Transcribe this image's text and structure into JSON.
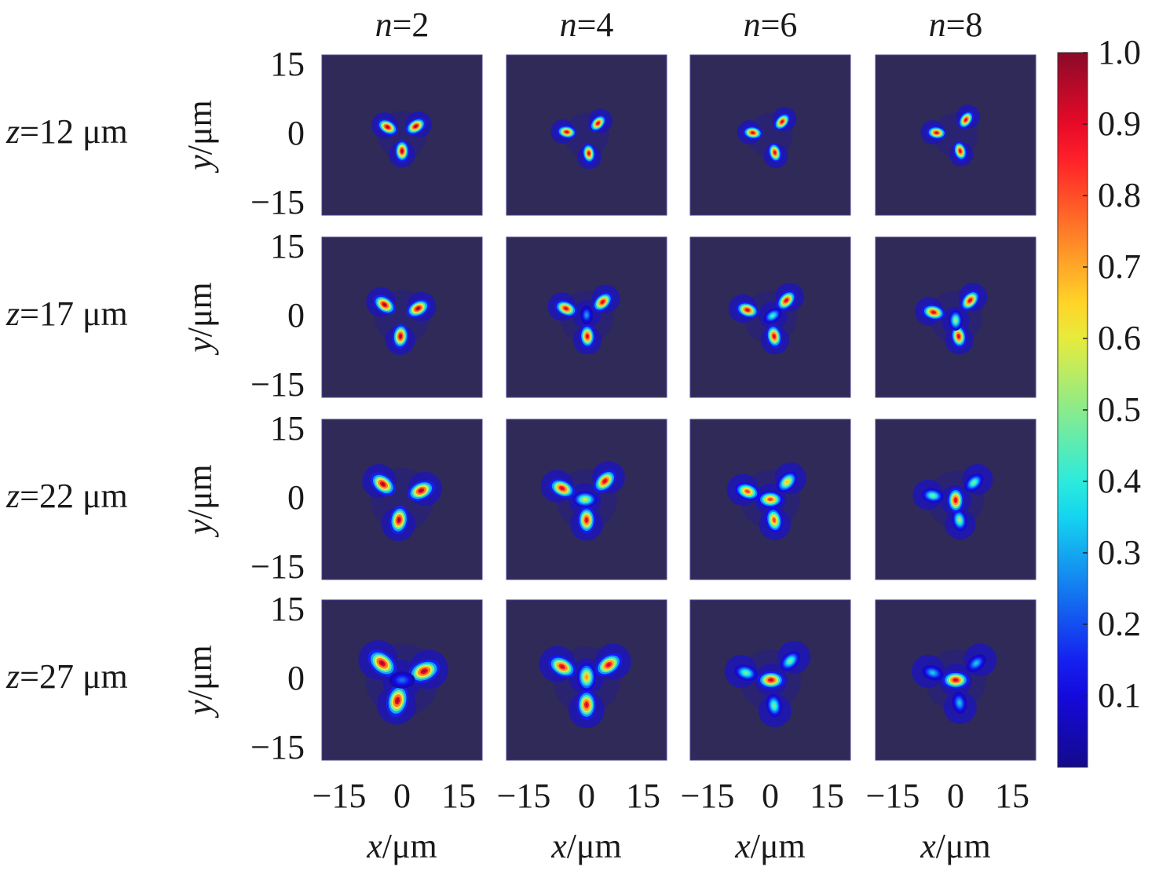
{
  "chart_data": {
    "type": "heatmap",
    "layout": "grid of intensity maps, 4 rows x 4 columns",
    "column_labels": [
      {
        "var": "n",
        "text": "=2"
      },
      {
        "var": "n",
        "text": "=4"
      },
      {
        "var": "n",
        "text": "=6"
      },
      {
        "var": "n",
        "text": "=8"
      }
    ],
    "row_labels": [
      {
        "var": "z",
        "text": "=12 μm"
      },
      {
        "var": "z",
        "text": "=17 μm"
      },
      {
        "var": "z",
        "text": "=22 μm"
      },
      {
        "var": "z",
        "text": "=27 μm"
      }
    ],
    "xlabel": {
      "var": "x",
      "text": "/μm"
    },
    "ylabel": {
      "var": "y",
      "text": "/μm"
    },
    "x_tick_labels": [
      "−15",
      "0",
      "15"
    ],
    "y_tick_labels": [
      "15",
      "0",
      "−15"
    ],
    "xlim": [
      -21,
      21
    ],
    "ylim": [
      -21,
      21
    ],
    "colorbar": {
      "colormap": "jet",
      "range": [
        0,
        1
      ],
      "tick_labels": [
        "1.0",
        "0.9",
        "0.8",
        "0.7",
        "0.6",
        "0.5",
        "0.4",
        "0.3",
        "0.2",
        "0.1"
      ],
      "tick_values": [
        1.0,
        0.9,
        0.8,
        0.7,
        0.6,
        0.5,
        0.4,
        0.3,
        0.2,
        0.1
      ]
    },
    "background_color": "#302a58",
    "panels": [
      [
        {
          "lobes": [
            [
              -3.8,
              2.1,
              1.0
            ],
            [
              3.6,
              2.3,
              1.0
            ],
            [
              0,
              -4.2,
              1.0
            ]
          ],
          "spread": 1.2
        },
        {
          "lobes": [
            [
              -5.2,
              0.8,
              0.95
            ],
            [
              3.0,
              3.1,
              0.95
            ],
            [
              0.6,
              -4.8,
              0.95
            ]
          ],
          "spread": 1.1
        },
        {
          "lobes": [
            [
              -4.6,
              0.6,
              0.95
            ],
            [
              3.1,
              3.5,
              0.95
            ],
            [
              1.2,
              -4.6,
              0.95
            ]
          ],
          "spread": 1.1
        },
        {
          "lobes": [
            [
              -5.0,
              0.6,
              0.95
            ],
            [
              2.7,
              4.0,
              0.95
            ],
            [
              1.2,
              -4.2,
              0.95
            ]
          ],
          "spread": 1.1
        }
      ],
      [
        {
          "lobes": [
            [
              -4.6,
              3.3,
              1.0
            ],
            [
              4.2,
              2.3,
              1.0
            ],
            [
              -0.4,
              -5.0,
              1.0
            ]
          ],
          "spread": 1.35
        },
        {
          "lobes": [
            [
              -5.4,
              2.3,
              0.95
            ],
            [
              4.2,
              4.0,
              0.95
            ],
            [
              0.2,
              -5.0,
              0.95
            ],
            [
              0,
              0.6,
              0.3
            ]
          ],
          "spread": 1.3
        },
        {
          "lobes": [
            [
              -6.0,
              1.9,
              0.95
            ],
            [
              4.2,
              4.4,
              0.95
            ],
            [
              1.0,
              -5.0,
              0.95
            ],
            [
              0.6,
              0.4,
              0.45
            ]
          ],
          "spread": 1.3
        },
        {
          "lobes": [
            [
              -5.8,
              1.3,
              0.95
            ],
            [
              3.8,
              4.4,
              0.95
            ],
            [
              0.8,
              -5.0,
              0.95
            ],
            [
              0,
              -0.8,
              0.55
            ]
          ],
          "spread": 1.3
        }
      ],
      [
        {
          "lobes": [
            [
              -5.0,
              4.0,
              1.0
            ],
            [
              5.0,
              2.3,
              1.0
            ],
            [
              -0.8,
              -5.4,
              1.0
            ]
          ],
          "spread": 1.55
        },
        {
          "lobes": [
            [
              -6.4,
              2.9,
              0.95
            ],
            [
              4.8,
              4.8,
              0.95
            ],
            [
              0,
              -5.4,
              0.95
            ],
            [
              -0.4,
              0,
              0.6
            ]
          ],
          "spread": 1.5
        },
        {
          "lobes": [
            [
              -6.0,
              2.1,
              0.85
            ],
            [
              4.4,
              4.6,
              0.7
            ],
            [
              1.0,
              -5.4,
              0.85
            ],
            [
              0,
              0,
              0.85
            ]
          ],
          "spread": 1.45
        },
        {
          "lobes": [
            [
              -6.0,
              1.0,
              0.5
            ],
            [
              4.8,
              4.4,
              0.5
            ],
            [
              1.0,
              -5.4,
              0.55
            ],
            [
              0,
              -0.2,
              0.95
            ]
          ],
          "spread": 1.4
        }
      ],
      [
        {
          "lobes": [
            [
              -5.2,
              4.4,
              1.0
            ],
            [
              5.8,
              2.3,
              1.0
            ],
            [
              -1.2,
              -5.4,
              1.0
            ],
            [
              0,
              0,
              0.25
            ]
          ],
          "spread": 1.8
        },
        {
          "lobes": [
            [
              -6.4,
              3.5,
              0.95
            ],
            [
              5.8,
              4.0,
              0.95
            ],
            [
              0,
              -6.5,
              0.95
            ],
            [
              0,
              0.8,
              0.75
            ]
          ],
          "spread": 1.65
        },
        {
          "lobes": [
            [
              -6.4,
              1.9,
              0.5
            ],
            [
              5.2,
              5.0,
              0.5
            ],
            [
              1.0,
              -6.7,
              0.5
            ],
            [
              0.2,
              0,
              0.95
            ]
          ],
          "spread": 1.5
        },
        {
          "lobes": [
            [
              -6.0,
              1.9,
              0.35
            ],
            [
              5.4,
              4.4,
              0.35
            ],
            [
              1.0,
              -6.0,
              0.35
            ],
            [
              0,
              0,
              0.95
            ]
          ],
          "spread": 1.5
        }
      ]
    ]
  }
}
